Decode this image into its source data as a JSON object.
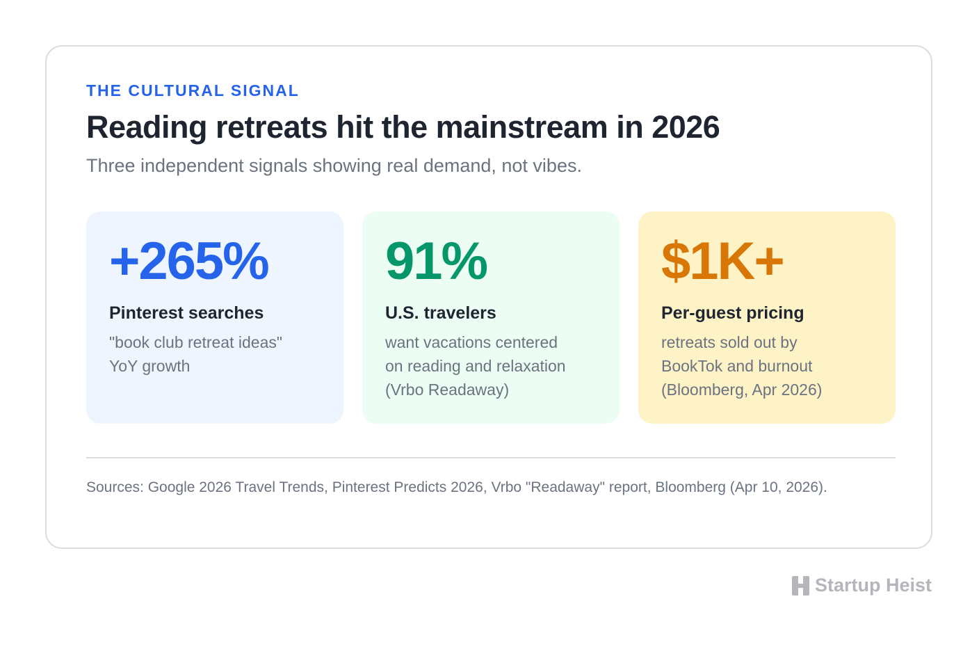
{
  "header": {
    "eyebrow": "THE CULTURAL SIGNAL",
    "title": "Reading retreats hit the mainstream in 2026",
    "subtitle": "Three independent signals showing real demand, not vibes."
  },
  "stats": [
    {
      "value": "+265%",
      "label": "Pinterest searches",
      "description": "\"book club retreat ideas\"\nYoY growth",
      "value_color": "#2563eb",
      "background_color": "#eff5ff"
    },
    {
      "value": "91%",
      "label": "U.S. travelers",
      "description": "want vacations centered\non reading and relaxation\n(Vrbo Readaway)",
      "value_color": "#059669",
      "background_color": "#ecfdf3"
    },
    {
      "value": "$1K+",
      "label": "Per-guest pricing",
      "description": "retreats sold out by\nBookTok and burnout\n(Bloomberg, Apr 2026)",
      "value_color": "#d97706",
      "background_color": "#fef3c7"
    }
  ],
  "footer": {
    "sources": "Sources: Google 2026 Travel Trends, Pinterest Predicts 2026, Vrbo \"Readaway\" report, Bloomberg (Apr 10, 2026)."
  },
  "brand": {
    "name": "Startup Heist",
    "icon": "startup-heist-logo-icon",
    "color": "#b4b6bc"
  }
}
